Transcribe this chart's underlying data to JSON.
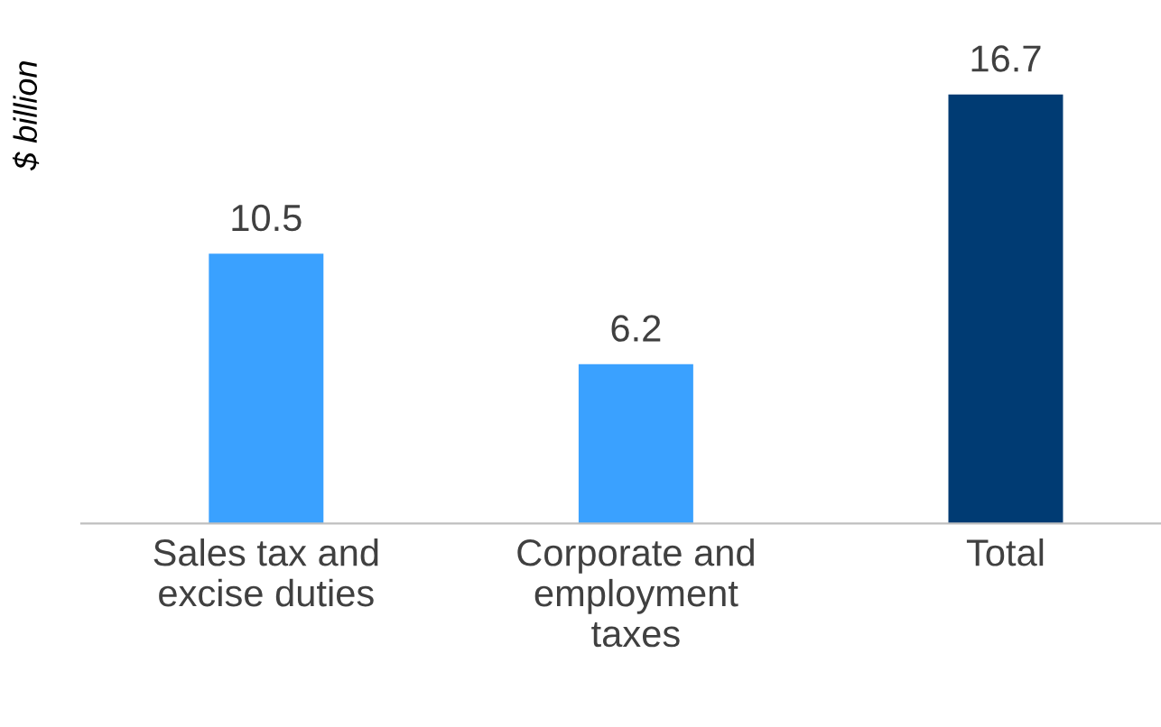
{
  "chart_data": {
    "type": "bar",
    "ylabel": "$ billion",
    "categories": [
      "Sales tax and\nexcise duties",
      "Corporate and\nemployment\ntaxes",
      "Total"
    ],
    "values": [
      10.5,
      6.2,
      16.7
    ],
    "colors": [
      "#3aa1ff",
      "#3aa1ff",
      "#003b73"
    ],
    "data_labels": true,
    "grid": false,
    "legend": false
  }
}
